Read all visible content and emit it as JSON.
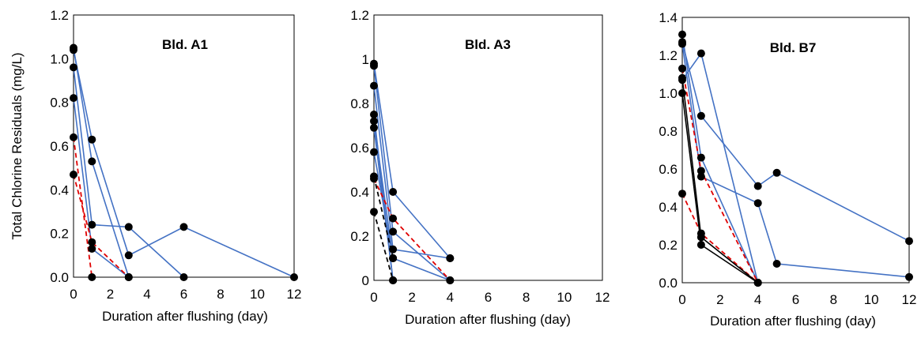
{
  "chart_data": [
    {
      "type": "line",
      "title": "Bld. A1",
      "xlabel": "Duration after flushing (day)",
      "ylabel": "Total Chlorine Residuals (mg/L)",
      "xlim": [
        0,
        12
      ],
      "ylim": [
        0,
        1.2
      ],
      "xticks": [
        "0",
        "2",
        "4",
        "6",
        "8",
        "10",
        "12"
      ],
      "yticks": [
        "0.0",
        "0.2",
        "0.4",
        "0.6",
        "0.8",
        "1.0",
        "1.2"
      ],
      "grid": false,
      "colors": {
        "blue": "#4472C4",
        "red": "#E00000",
        "black": "#000000",
        "frame": "#000000"
      },
      "series": [
        {
          "style": "blue-solid",
          "points": [
            [
              0,
              1.05
            ],
            [
              1,
              0.53
            ],
            [
              3,
              0.0
            ]
          ]
        },
        {
          "style": "blue-solid",
          "points": [
            [
              0,
              1.04
            ],
            [
              1,
              0.63
            ],
            [
              3,
              0.1
            ],
            [
              6,
              0.23
            ],
            [
              12,
              0.0
            ]
          ]
        },
        {
          "style": "blue-solid",
          "points": [
            [
              0,
              0.96
            ],
            [
              1,
              0.24
            ],
            [
              3,
              0.23
            ],
            [
              6,
              0.0
            ]
          ]
        },
        {
          "style": "blue-solid",
          "points": [
            [
              0,
              0.82
            ],
            [
              1,
              0.13
            ],
            [
              3,
              0.0
            ]
          ]
        },
        {
          "style": "red-dashed",
          "points": [
            [
              0,
              0.64
            ],
            [
              1,
              0.0
            ]
          ]
        },
        {
          "style": "red-dashed",
          "points": [
            [
              0,
              0.47
            ],
            [
              1,
              0.16
            ],
            [
              3,
              0.0
            ]
          ]
        }
      ]
    },
    {
      "type": "line",
      "title": "Bld. A3",
      "xlabel": "Duration after flushing (day)",
      "ylabel": "",
      "xlim": [
        0,
        12
      ],
      "ylim": [
        0,
        1.2
      ],
      "xticks": [
        "0",
        "2",
        "4",
        "6",
        "8",
        "10",
        "12"
      ],
      "yticks": [
        "0",
        "0.2",
        "0.4",
        "0.6",
        "0.8",
        "1",
        "1.2"
      ],
      "grid": false,
      "colors": {
        "blue": "#4472C4",
        "red": "#E00000",
        "black": "#000000",
        "frame": "#000000"
      },
      "series": [
        {
          "style": "blue-solid",
          "points": [
            [
              0,
              0.98
            ],
            [
              1,
              0.4
            ],
            [
              4,
              0.1
            ]
          ]
        },
        {
          "style": "blue-solid",
          "points": [
            [
              0,
              0.97
            ],
            [
              1,
              0.22
            ],
            [
              4,
              0.0
            ]
          ]
        },
        {
          "style": "blue-solid",
          "points": [
            [
              0,
              0.88
            ],
            [
              1,
              0.14
            ],
            [
              4,
              0.1
            ]
          ]
        },
        {
          "style": "blue-solid",
          "points": [
            [
              0,
              0.75
            ],
            [
              1,
              0.0
            ]
          ]
        },
        {
          "style": "blue-solid",
          "points": [
            [
              0,
              0.72
            ],
            [
              1,
              0.1
            ],
            [
              4,
              0.0
            ]
          ]
        },
        {
          "style": "blue-solid",
          "points": [
            [
              0,
              0.69
            ],
            [
              1,
              0.0
            ]
          ]
        },
        {
          "style": "blue-solid",
          "points": [
            [
              0,
              0.58
            ],
            [
              1,
              0.1
            ]
          ]
        },
        {
          "style": "black-dashed",
          "points": [
            [
              0,
              0.47
            ],
            [
              1,
              0.1
            ]
          ]
        },
        {
          "style": "red-dashed",
          "points": [
            [
              0,
              0.46
            ],
            [
              1,
              0.28
            ],
            [
              4,
              0.0
            ]
          ]
        },
        {
          "style": "black-dashed",
          "points": [
            [
              0,
              0.31
            ],
            [
              1,
              0.0
            ]
          ]
        }
      ]
    },
    {
      "type": "line",
      "title": "Bld. B7",
      "xlabel": "Duration after flushing (day)",
      "ylabel": "",
      "xlim": [
        0,
        12
      ],
      "ylim": [
        0,
        1.4
      ],
      "xticks": [
        "0",
        "2",
        "4",
        "6",
        "8",
        "10",
        "12"
      ],
      "yticks": [
        "0.0",
        "0.2",
        "0.4",
        "0.6",
        "0.8",
        "1.0",
        "1.2",
        "1.4"
      ],
      "grid": false,
      "colors": {
        "blue": "#4472C4",
        "red": "#E00000",
        "black": "#000000",
        "frame": "#000000"
      },
      "series": [
        {
          "style": "blue-solid",
          "points": [
            [
              0,
              1.31
            ],
            [
              1,
              0.66
            ],
            [
              4,
              0.0
            ]
          ]
        },
        {
          "style": "blue-solid",
          "points": [
            [
              0,
              1.27
            ],
            [
              1,
              0.88
            ],
            [
              4,
              0.51
            ],
            [
              5,
              0.58
            ],
            [
              12,
              0.22
            ]
          ]
        },
        {
          "style": "blue-solid",
          "points": [
            [
              0,
              1.26
            ],
            [
              1,
              0.56
            ],
            [
              4,
              0.42
            ],
            [
              5,
              0.1
            ],
            [
              12,
              0.03
            ]
          ]
        },
        {
          "style": "blue-solid",
          "points": [
            [
              0,
              1.07
            ],
            [
              1,
              1.21
            ],
            [
              4,
              0.0
            ]
          ]
        },
        {
          "style": "red-dashed",
          "points": [
            [
              0,
              1.13
            ],
            [
              1,
              0.59
            ],
            [
              4,
              0.0
            ]
          ]
        },
        {
          "style": "red-dashed",
          "points": [
            [
              0,
              0.47
            ],
            [
              1,
              0.26
            ],
            [
              4,
              0.0
            ]
          ]
        },
        {
          "style": "black-solid",
          "points": [
            [
              0,
              1.08
            ],
            [
              1,
              0.24
            ],
            [
              4,
              0.0
            ]
          ]
        },
        {
          "style": "black-solid",
          "points": [
            [
              0,
              1.0
            ],
            [
              1,
              0.2
            ],
            [
              4,
              0.0
            ]
          ]
        }
      ]
    }
  ]
}
